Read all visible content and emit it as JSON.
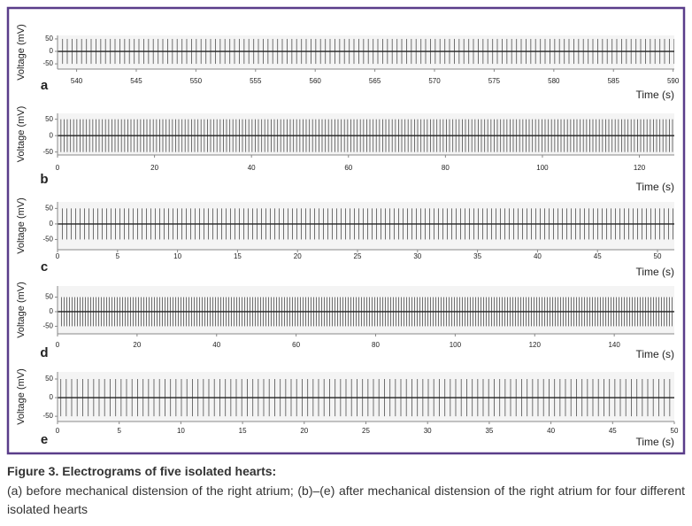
{
  "chart_data": [
    {
      "type": "line",
      "panel_label": "a",
      "x_label": "Time (s)",
      "y_label": "Voltage (mV)",
      "xlim": [
        538.4,
        590.1
      ],
      "xticks": [
        540,
        545,
        550,
        555,
        560,
        565,
        570,
        575,
        580,
        585,
        590
      ],
      "ylim": [
        -71,
        64
      ],
      "yticks": [
        -50,
        0,
        50
      ]
    },
    {
      "type": "line",
      "panel_label": "b",
      "x_label": "Time (s)",
      "y_label": "Voltage (mV)",
      "xlim": [
        0,
        127.2
      ],
      "xticks": [
        0,
        20,
        40,
        60,
        80,
        100,
        120
      ],
      "ylim": [
        -59,
        68
      ],
      "yticks": [
        -50,
        0,
        50
      ]
    },
    {
      "type": "line",
      "panel_label": "c",
      "x_label": "Time (s)",
      "y_label": "Voltage (mV)",
      "xlim": [
        0,
        51.4
      ],
      "xticks": [
        0,
        5,
        10,
        15,
        20,
        25,
        30,
        35,
        40,
        45,
        50
      ],
      "ylim": [
        -83,
        71
      ],
      "yticks": [
        -50,
        0,
        50
      ]
    },
    {
      "type": "line",
      "panel_label": "d",
      "x_label": "Time (s)",
      "y_label": "Voltage (mV)",
      "xlim": [
        0,
        155.1
      ],
      "xticks": [
        0,
        20,
        40,
        60,
        80,
        100,
        120,
        140
      ],
      "ylim": [
        -76,
        88
      ],
      "yticks": [
        -50,
        0,
        50
      ]
    },
    {
      "type": "line",
      "panel_label": "e",
      "x_label": "Time (s)",
      "y_label": "Voltage (mV)",
      "xlim": [
        0,
        50
      ],
      "xticks": [
        0,
        5,
        10,
        15,
        20,
        25,
        30,
        35,
        40,
        45,
        50
      ],
      "ylim": [
        -64,
        69
      ],
      "yticks": [
        -50,
        0,
        50
      ]
    }
  ],
  "caption": {
    "title": "Figure 3. Electrograms of five isolated hearts:",
    "text": "(a) before mechanical distension of the right atrium; (b)–(e) after mechanical distension of the right atrium for four different isolated hearts"
  }
}
